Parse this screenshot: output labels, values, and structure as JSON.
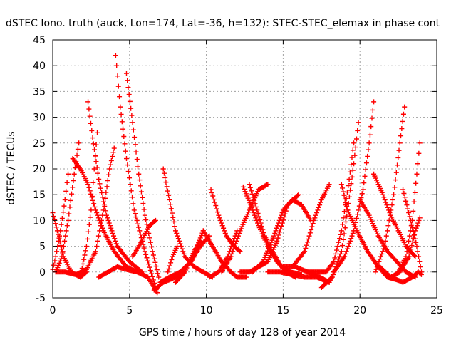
{
  "chart_data": {
    "type": "scatter",
    "title": "dSTEC Iono. truth (auck, Lon=174, Lat=-36, h=132): STEC-STEC_elemax in phase cont",
    "xlabel": "GPS time / hours of day 128 of year 2014",
    "ylabel": "dSTEC  / TECUs",
    "xlim": [
      0,
      25
    ],
    "ylim": [
      -5,
      45
    ],
    "xticks": [
      0,
      5,
      10,
      15,
      20,
      25
    ],
    "yticks": [
      -5,
      0,
      5,
      10,
      15,
      20,
      25,
      30,
      35,
      40,
      45
    ],
    "xtick_labels": [
      "0",
      "5",
      "10",
      "15",
      "20",
      "25"
    ],
    "ytick_labels": [
      "-5",
      "0",
      "5",
      "10",
      "15",
      "20",
      "25",
      "30",
      "35",
      "40",
      "45"
    ],
    "grid": true,
    "marker": "+",
    "color": "#ff0000",
    "series": [
      {
        "x": [
          0.0,
          0.3,
          0.7,
          1.2,
          1.8,
          2.2
        ],
        "y": [
          11.5,
          8,
          3,
          0,
          -1,
          0
        ]
      },
      {
        "x": [
          0.0,
          0.2,
          0.5,
          0.8,
          1.0
        ],
        "y": [
          0.5,
          3,
          8,
          14,
          19
        ]
      },
      {
        "x": [
          0.2,
          0.6,
          1.0,
          1.4,
          1.7
        ],
        "y": [
          0,
          3,
          10,
          19,
          25
        ]
      },
      {
        "x": [
          1.3,
          1.8,
          2.3,
          2.8,
          3.3,
          4.0,
          4.8,
          5.5
        ],
        "y": [
          22,
          20,
          17,
          12,
          8,
          4,
          1,
          0
        ]
      },
      {
        "x": [
          0.2,
          0.8,
          1.5,
          2.2,
          2.8,
          3.3,
          3.7,
          4.0
        ],
        "y": [
          0,
          0,
          -0.5,
          0.5,
          4,
          12,
          20,
          24
        ]
      },
      {
        "x": [
          2.3,
          2.6,
          3.0,
          3.5,
          4.2,
          5.0,
          5.8
        ],
        "y": [
          33,
          26,
          18,
          11,
          5,
          2,
          0
        ]
      },
      {
        "x": [
          1.8,
          2.2,
          2.5,
          2.7,
          2.9
        ],
        "y": [
          -1,
          5,
          12,
          20,
          27
        ]
      },
      {
        "x": [
          4.1,
          4.4,
          4.8,
          5.3,
          6.0,
          6.8
        ],
        "y": [
          42,
          32,
          22,
          12,
          4,
          -4
        ]
      },
      {
        "x": [
          4.8,
          5.2,
          5.6,
          6.0,
          6.5,
          6.9
        ],
        "y": [
          38.5,
          29,
          19,
          11,
          4,
          -1
        ]
      },
      {
        "x": [
          3.0,
          3.6,
          4.2,
          4.8,
          5.5,
          6.2,
          6.8
        ],
        "y": [
          -1,
          0,
          1,
          0.5,
          0,
          -1,
          -4
        ]
      },
      {
        "x": [
          5.2,
          5.8,
          6.3,
          6.7
        ],
        "y": [
          3,
          6,
          9,
          10
        ]
      },
      {
        "x": [
          6.6,
          7.2,
          8.0,
          9.0,
          9.8
        ],
        "y": [
          -3.5,
          -2,
          -1,
          2,
          8
        ]
      },
      {
        "x": [
          7.2,
          7.6,
          8.0,
          8.6,
          9.2,
          9.8,
          10.4
        ],
        "y": [
          20,
          14,
          8,
          3,
          1,
          0,
          -1
        ]
      },
      {
        "x": [
          7.5,
          7.8,
          8.1
        ],
        "y": [
          0,
          3,
          5
        ]
      },
      {
        "x": [
          7.0,
          7.6,
          8.3,
          9.0,
          9.6,
          10.2
        ],
        "y": [
          -2,
          -1,
          0,
          2,
          5,
          7
        ]
      },
      {
        "x": [
          8.0,
          8.6,
          9.2,
          9.6
        ],
        "y": [
          -2,
          0,
          4,
          6
        ]
      },
      {
        "x": [
          9.8,
          10.4,
          11.0,
          11.6,
          12.0,
          12.6
        ],
        "y": [
          8,
          5,
          2,
          0,
          -1,
          -1
        ]
      },
      {
        "x": [
          10.2,
          10.8,
          11.4,
          12.0
        ],
        "y": [
          -1,
          0,
          3,
          8
        ]
      },
      {
        "x": [
          10.3,
          10.8,
          11.3,
          11.8,
          12.2
        ],
        "y": [
          16,
          11,
          7,
          5,
          4
        ]
      },
      {
        "x": [
          11.0,
          11.6,
          12.2,
          12.8,
          13.4,
          14.0
        ],
        "y": [
          0,
          3,
          8,
          12,
          16,
          17
        ]
      },
      {
        "x": [
          12.4,
          12.9,
          13.4,
          14.0,
          14.6,
          15.2,
          15.8
        ],
        "y": [
          16.5,
          13,
          9,
          5,
          2,
          0,
          -1
        ]
      },
      {
        "x": [
          12.8,
          13.3,
          13.8,
          14.3,
          14.9,
          15.5,
          16.2
        ],
        "y": [
          17,
          12,
          7,
          4,
          1,
          0,
          -0.5
        ]
      },
      {
        "x": [
          12.2,
          12.8,
          13.4,
          14.0,
          14.6,
          15.3,
          16.0
        ],
        "y": [
          0,
          0,
          1,
          2,
          6,
          13,
          15
        ]
      },
      {
        "x": [
          13.0,
          13.7,
          14.4,
          15.0,
          15.6,
          16.2,
          16.8
        ],
        "y": [
          0,
          2,
          7,
          12,
          14,
          13,
          10
        ]
      },
      {
        "x": [
          14.0,
          14.8,
          15.6,
          16.4,
          17.2,
          18.0
        ],
        "y": [
          0,
          0,
          -0.5,
          -1,
          -1,
          -2
        ]
      },
      {
        "x": [
          15.0,
          15.8,
          16.6,
          17.4,
          18.0,
          18.3
        ],
        "y": [
          1,
          1,
          0,
          -1,
          -2,
          0
        ]
      },
      {
        "x": [
          15.6,
          16.4,
          17.0,
          17.5,
          18.0
        ],
        "y": [
          1,
          4,
          10,
          14,
          17
        ]
      },
      {
        "x": [
          16.5,
          17.2,
          17.8,
          18.3,
          18.8,
          19.3,
          19.6
        ],
        "y": [
          0,
          0,
          0,
          2,
          8,
          18,
          25
        ]
      },
      {
        "x": [
          17.5,
          18.2,
          18.8,
          19.2,
          19.6,
          19.9
        ],
        "y": [
          -3,
          -1,
          4,
          12,
          21,
          29
        ]
      },
      {
        "x": [
          18.3,
          19.0,
          19.6,
          20.2,
          20.6,
          20.9
        ],
        "y": [
          0,
          3,
          8,
          16,
          25,
          33
        ]
      },
      {
        "x": [
          18.8,
          19.2,
          19.8,
          20.5,
          21.2,
          21.8,
          22.4
        ],
        "y": [
          17,
          12,
          8,
          4,
          1,
          -1,
          -1.5
        ]
      },
      {
        "x": [
          20.0,
          20.6,
          21.2,
          21.8,
          22.4,
          23.0,
          23.6
        ],
        "y": [
          14,
          11,
          7,
          4,
          2,
          0,
          -1
        ]
      },
      {
        "x": [
          20.9,
          21.5,
          22.0,
          22.5,
          23.0,
          23.6
        ],
        "y": [
          19,
          15,
          11,
          8,
          5,
          3
        ]
      },
      {
        "x": [
          21.0,
          21.6,
          22.2,
          22.6,
          22.9
        ],
        "y": [
          0,
          5,
          15,
          25,
          32
        ]
      },
      {
        "x": [
          21.3,
          22.0,
          22.8,
          23.4,
          23.8,
          24.0
        ],
        "y": [
          1,
          -1,
          -2,
          -1,
          0,
          -0.5
        ]
      },
      {
        "x": [
          22.5,
          23.0,
          23.4,
          23.7,
          23.9
        ],
        "y": [
          0,
          3,
          10,
          19,
          25
        ]
      },
      {
        "x": [
          22.0,
          22.6,
          23.2,
          23.6,
          23.9
        ],
        "y": [
          -1,
          0,
          3,
          8,
          10.5
        ]
      },
      {
        "x": [
          22.8,
          23.3,
          23.7,
          24.0
        ],
        "y": [
          16,
          10,
          5,
          0
        ]
      }
    ]
  }
}
